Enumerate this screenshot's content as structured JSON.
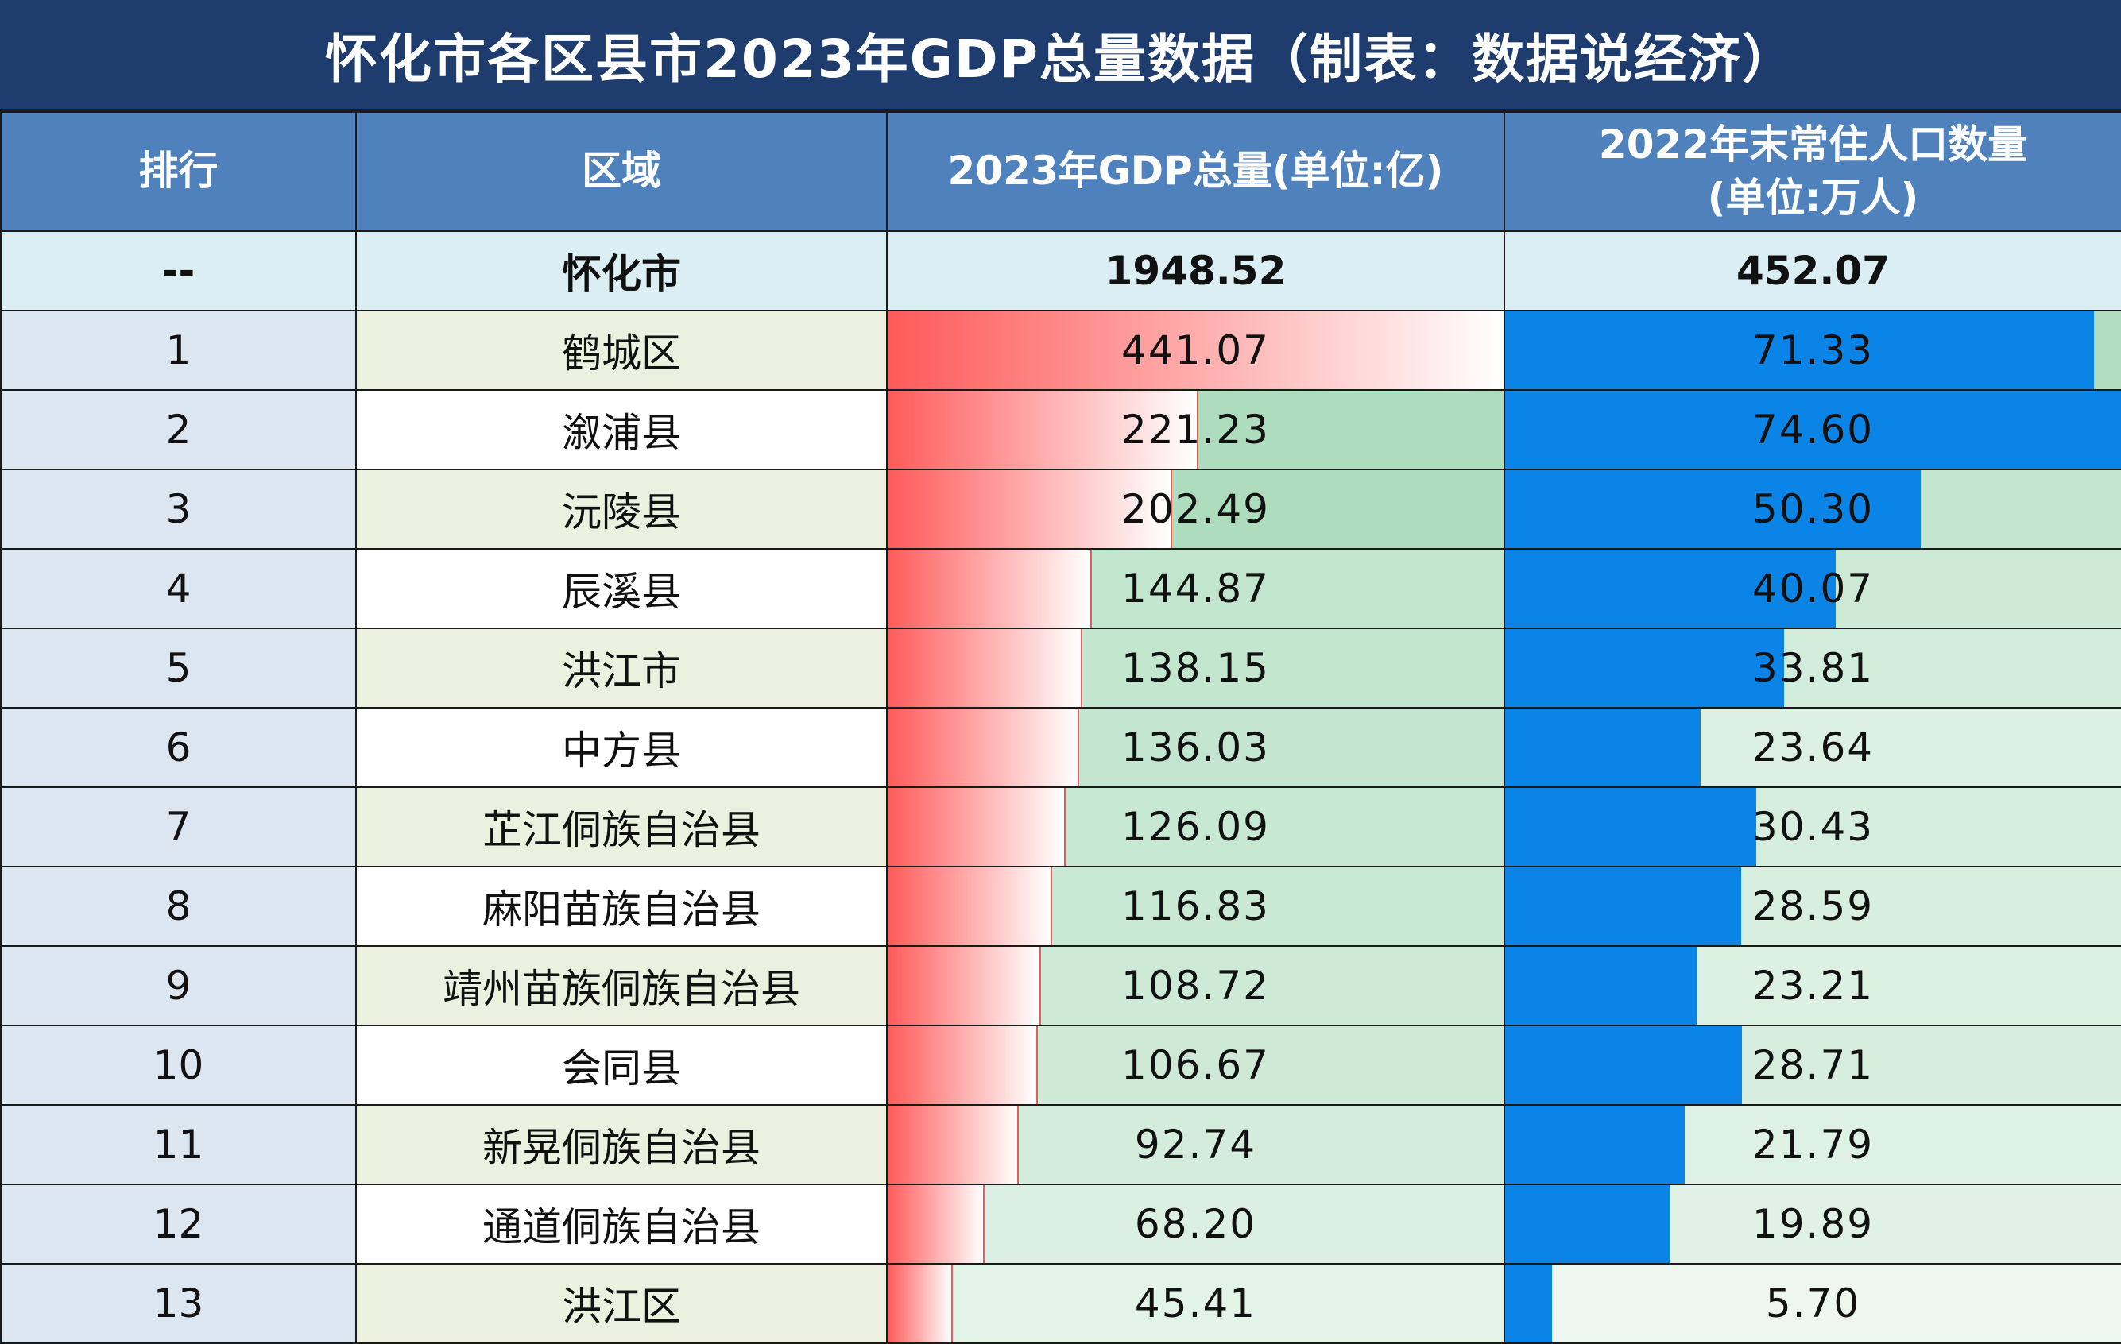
{
  "title": "怀化市各区县市2023年GDP总量数据（制表：数据说经济）",
  "headers": {
    "rank": "排行",
    "region": "区域",
    "gdp": "2023年GDP总量(单位:亿)",
    "pop_line1": "2022年末常住人口数量",
    "pop_line2": "(单位:万人)"
  },
  "total": {
    "rank": "--",
    "region": "怀化市",
    "gdp": "1948.52",
    "pop": "452.07"
  },
  "colors": {
    "title_bg": "#1f3c6e",
    "header_bg": "#4f81bd",
    "gdp_bar": "#ff5a5a",
    "pop_bar": "#0a84e6",
    "green_bg_strong": "#8fd0a5",
    "green_bg_light": "#e2f2e6"
  },
  "chart_data": {
    "type": "table",
    "title": "怀化市各区县市2023年GDP总量数据（制表：数据说经济）",
    "columns": [
      "排行",
      "区域",
      "2023年GDP总量(单位:亿)",
      "2022年末常住人口数量(单位:万人)"
    ],
    "gdp_max": 441.07,
    "pop_max": 74.6,
    "rows": [
      {
        "rank": "1",
        "region": "鹤城区",
        "gdp": 441.07,
        "gdp_label": "441.07",
        "pop": 71.33,
        "pop_label": "71.33"
      },
      {
        "rank": "2",
        "region": "溆浦县",
        "gdp": 221.23,
        "gdp_label": "221.23",
        "pop": 74.6,
        "pop_label": "74.60"
      },
      {
        "rank": "3",
        "region": "沅陵县",
        "gdp": 202.49,
        "gdp_label": "202.49",
        "pop": 50.3,
        "pop_label": "50.30"
      },
      {
        "rank": "4",
        "region": "辰溪县",
        "gdp": 144.87,
        "gdp_label": "144.87",
        "pop": 40.07,
        "pop_label": "40.07"
      },
      {
        "rank": "5",
        "region": "洪江市",
        "gdp": 138.15,
        "gdp_label": "138.15",
        "pop": 33.81,
        "pop_label": "33.81"
      },
      {
        "rank": "6",
        "region": "中方县",
        "gdp": 136.03,
        "gdp_label": "136.03",
        "pop": 23.64,
        "pop_label": "23.64"
      },
      {
        "rank": "7",
        "region": "芷江侗族自治县",
        "gdp": 126.09,
        "gdp_label": "126.09",
        "pop": 30.43,
        "pop_label": "30.43"
      },
      {
        "rank": "8",
        "region": "麻阳苗族自治县",
        "gdp": 116.83,
        "gdp_label": "116.83",
        "pop": 28.59,
        "pop_label": "28.59"
      },
      {
        "rank": "9",
        "region": "靖州苗族侗族自治县",
        "gdp": 108.72,
        "gdp_label": "108.72",
        "pop": 23.21,
        "pop_label": "23.21"
      },
      {
        "rank": "10",
        "region": "会同县",
        "gdp": 106.67,
        "gdp_label": "106.67",
        "pop": 28.71,
        "pop_label": "28.71"
      },
      {
        "rank": "11",
        "region": "新晃侗族自治县",
        "gdp": 92.74,
        "gdp_label": "92.74",
        "pop": 21.79,
        "pop_label": "21.79"
      },
      {
        "rank": "12",
        "region": "通道侗族自治县",
        "gdp": 68.2,
        "gdp_label": "68.20",
        "pop": 19.89,
        "pop_label": "19.89"
      },
      {
        "rank": "13",
        "region": "洪江区",
        "gdp": 45.41,
        "gdp_label": "45.41",
        "pop": 5.7,
        "pop_label": "5.70"
      }
    ]
  }
}
